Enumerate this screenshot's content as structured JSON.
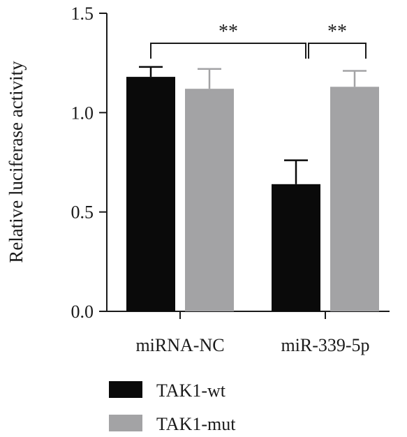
{
  "chart_data": {
    "type": "bar",
    "ylabel": "Relative luciferase activity",
    "ylim": [
      0,
      1.5
    ],
    "yticks": [
      "0.0",
      "0.5",
      "1.0",
      "1.5"
    ],
    "categories": [
      "miRNA-NC",
      "miR-339-5p"
    ],
    "series": [
      {
        "name": "TAK1-wt",
        "color": "#0a0a0a",
        "values": [
          1.18,
          0.64
        ],
        "errors": [
          0.05,
          0.12
        ]
      },
      {
        "name": "TAK1-mut",
        "color": "#a3a3a5",
        "values": [
          1.12,
          1.13
        ],
        "errors": [
          0.1,
          0.08
        ]
      }
    ],
    "significance": [
      {
        "label": "**",
        "between": "miRNA-NC vs miR-339-5p (TAK1-wt)"
      },
      {
        "label": "**",
        "between": "TAK1-wt vs TAK1-mut (miR-339-5p)"
      }
    ],
    "legend_position": "bottom-left"
  }
}
